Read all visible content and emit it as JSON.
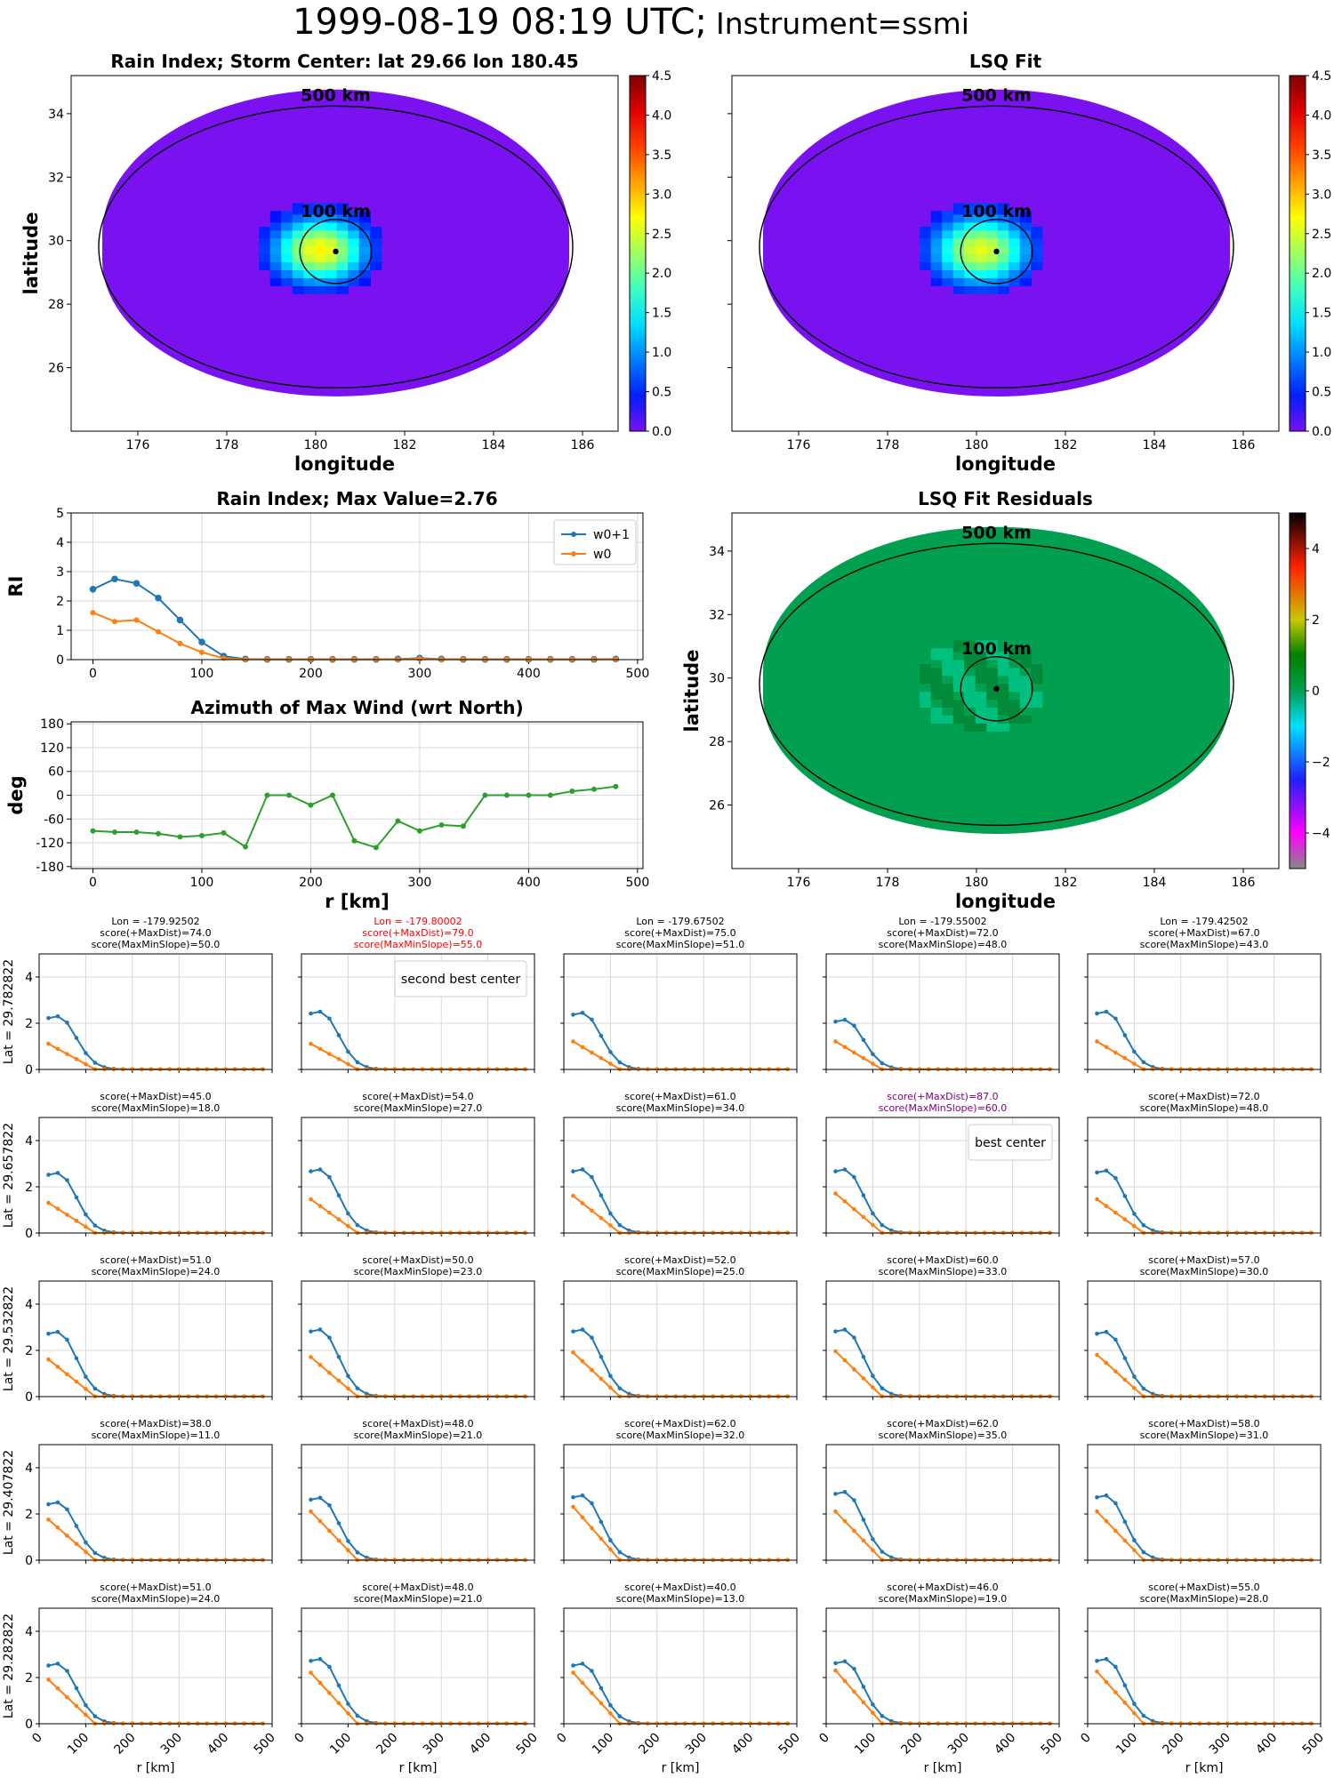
{
  "suptitle": {
    "main": "1999-08-19 08:19 UTC;",
    "instrument": "Instrument=ssmi"
  },
  "colors": {
    "w0p1": "#1f77b4",
    "w0": "#ff7f0e",
    "azimuth": "#2ca02c",
    "rain_background": "#7a11f0",
    "residual_background": "#00a050",
    "highlight_red": "#ff0000",
    "highlight_purple": "#800080"
  },
  "chart_data": [
    {
      "id": "rain-index-map",
      "type": "heatmap",
      "title": "Rain Index; Storm Center: lat 29.66 lon 180.45",
      "xlabel": "longitude",
      "ylabel": "latitude",
      "xlim": [
        174.5,
        186.8
      ],
      "ylim": [
        24.0,
        35.2
      ],
      "xticks": [
        "176",
        "178",
        "180",
        "182",
        "184",
        "186"
      ],
      "yticks": [
        "26",
        "28",
        "30",
        "32",
        "34"
      ],
      "storm_center": {
        "lon": 180.45,
        "lat": 29.66
      },
      "ring_labels": [
        "500 km",
        "100 km"
      ],
      "colorbar": {
        "colormap": "jet",
        "range": [
          0.0,
          4.5
        ],
        "ticks": [
          "0.0",
          "0.5",
          "1.0",
          "1.5",
          "2.0",
          "2.5",
          "3.0",
          "3.5",
          "4.0",
          "4.5"
        ]
      },
      "core_value": 2.76
    },
    {
      "id": "lsq-fit-map",
      "type": "heatmap",
      "title": "LSQ Fit",
      "xlabel": "longitude",
      "ylabel": "",
      "xlim": [
        174.5,
        186.8
      ],
      "ylim": [
        24.0,
        35.2
      ],
      "xticks": [
        "176",
        "178",
        "180",
        "182",
        "184",
        "186"
      ],
      "yticks": [],
      "storm_center": {
        "lon": 180.45,
        "lat": 29.66
      },
      "ring_labels": [
        "500 km",
        "100 km"
      ],
      "colorbar": {
        "colormap": "jet",
        "range": [
          0.0,
          4.5
        ],
        "ticks": [
          "0.0",
          "0.5",
          "1.0",
          "1.5",
          "2.0",
          "2.5",
          "3.0",
          "3.5",
          "4.0",
          "4.5"
        ]
      }
    },
    {
      "id": "rain-index-profile",
      "type": "line",
      "title": "Rain Index; Max Value=2.76",
      "xlabel": "",
      "ylabel": "RI",
      "xlim": [
        -20,
        505
      ],
      "ylim": [
        0,
        5
      ],
      "xticks": [
        "0",
        "100",
        "200",
        "300",
        "400",
        "500"
      ],
      "yticks": [
        "0",
        "1",
        "2",
        "3",
        "4",
        "5"
      ],
      "grid": true,
      "legend": "top-right",
      "x": [
        0,
        20,
        40,
        60,
        80,
        100,
        120,
        140,
        160,
        180,
        200,
        220,
        240,
        260,
        280,
        300,
        320,
        340,
        360,
        380,
        400,
        420,
        440,
        460,
        480
      ],
      "series": [
        {
          "name": "w0+1",
          "values": [
            2.4,
            2.75,
            2.6,
            2.1,
            1.35,
            0.6,
            0.12,
            0.02,
            0.01,
            0.01,
            0.01,
            0.01,
            0.01,
            0.01,
            0.02,
            0.05,
            0.02,
            0.01,
            0.01,
            0.01,
            0.01,
            0.01,
            0.01,
            0.01,
            0.02
          ]
        },
        {
          "name": "w0",
          "values": [
            1.6,
            1.3,
            1.35,
            0.95,
            0.55,
            0.25,
            0.05,
            0.01,
            0.01,
            0.01,
            0.01,
            0.01,
            0.01,
            0.01,
            0.01,
            0.03,
            0.01,
            0.01,
            0.01,
            0.01,
            0.01,
            0.01,
            0.01,
            0.01,
            0.01
          ]
        }
      ]
    },
    {
      "id": "azimuth-profile",
      "type": "line",
      "title": "Azimuth of Max Wind (wrt North)",
      "xlabel": "r [km]",
      "ylabel": "deg",
      "xlim": [
        -20,
        505
      ],
      "ylim": [
        -185,
        185
      ],
      "xticks": [
        "0",
        "100",
        "200",
        "300",
        "400",
        "500"
      ],
      "yticks": [
        "-180",
        "-120",
        "-60",
        "0",
        "60",
        "120",
        "180"
      ],
      "grid": true,
      "x": [
        0,
        20,
        40,
        60,
        80,
        100,
        120,
        140,
        160,
        180,
        200,
        220,
        240,
        260,
        280,
        300,
        320,
        340,
        360,
        380,
        400,
        420,
        440,
        460,
        480
      ],
      "series": [
        {
          "name": "",
          "values": [
            -90,
            -93,
            -93,
            -97,
            -105,
            -102,
            -95,
            -130,
            0,
            0,
            -25,
            0,
            -115,
            -132,
            -65,
            -90,
            -75,
            -78,
            0,
            0,
            0,
            0,
            10,
            15,
            22
          ]
        }
      ]
    },
    {
      "id": "lsq-residuals-map",
      "type": "heatmap",
      "title": "LSQ Fit Residuals",
      "xlabel": "longitude",
      "ylabel": "latitude",
      "xlim": [
        174.5,
        186.8
      ],
      "ylim": [
        24.0,
        35.2
      ],
      "xticks": [
        "176",
        "178",
        "180",
        "182",
        "184",
        "186"
      ],
      "yticks": [
        "26",
        "28",
        "30",
        "32",
        "34"
      ],
      "storm_center": {
        "lon": 180.45,
        "lat": 29.66
      },
      "ring_labels": [
        "500 km",
        "100 km"
      ],
      "colorbar": {
        "colormap": "diverging",
        "range": [
          -5,
          5
        ],
        "ticks": [
          "−4",
          "−2",
          "0",
          "2",
          "4"
        ]
      }
    }
  ],
  "grid_panels": {
    "xlabel": "r [km]",
    "xticks": [
      "0",
      "100",
      "200",
      "300",
      "400",
      "500"
    ],
    "yticks": [
      "0",
      "2",
      "4"
    ],
    "xlim": [
      0,
      500
    ],
    "ylim": [
      0,
      5
    ],
    "row_labels": [
      "Lat = 29.782822",
      "Lat = 29.657822",
      "Lat = 29.532822",
      "Lat = 29.407822",
      "Lat = 29.282822"
    ],
    "column_lons": [
      "Lon = -179.92502",
      "Lon = -179.80002",
      "Lon = -179.67502",
      "Lon = -179.55002",
      "Lon = -179.42502"
    ],
    "scores": [
      [
        [
          74.0,
          50.0
        ],
        [
          79.0,
          55.0
        ],
        [
          75.0,
          51.0
        ],
        [
          72.0,
          48.0
        ],
        [
          67.0,
          43.0
        ]
      ],
      [
        [
          45.0,
          18.0
        ],
        [
          54.0,
          27.0
        ],
        [
          61.0,
          34.0
        ],
        [
          87.0,
          60.0
        ],
        [
          72.0,
          48.0
        ]
      ],
      [
        [
          51.0,
          24.0
        ],
        [
          50.0,
          23.0
        ],
        [
          52.0,
          25.0
        ],
        [
          60.0,
          33.0
        ],
        [
          57.0,
          30.0
        ]
      ],
      [
        [
          38.0,
          11.0
        ],
        [
          48.0,
          21.0
        ],
        [
          62.0,
          32.0
        ],
        [
          62.0,
          35.0
        ],
        [
          58.0,
          31.0
        ]
      ],
      [
        [
          51.0,
          24.0
        ],
        [
          48.0,
          21.0
        ],
        [
          40.0,
          13.0
        ],
        [
          46.0,
          19.0
        ],
        [
          55.0,
          28.0
        ]
      ]
    ],
    "score_label_maxdist": "score(+MaxDist)=",
    "score_label_slope": "score(MaxMinSlope)=",
    "second_best": {
      "row": 0,
      "col": 1,
      "label": "second best center"
    },
    "best": {
      "row": 1,
      "col": 3,
      "label": "best center"
    },
    "profile_x": [
      20,
      40,
      60,
      80,
      100,
      120,
      140,
      160,
      180,
      200,
      220,
      240,
      260,
      280,
      300,
      320,
      340,
      360,
      380,
      400,
      420,
      440,
      460,
      480
    ],
    "w0p1_peak": [
      [
        2.3,
        2.5,
        2.45,
        2.15,
        2.5
      ],
      [
        2.6,
        2.75,
        2.75,
        2.75,
        2.7
      ],
      [
        2.8,
        2.9,
        2.9,
        2.9,
        2.8
      ],
      [
        2.5,
        2.7,
        2.8,
        2.95,
        2.8
      ],
      [
        2.6,
        2.8,
        2.6,
        2.7,
        2.8
      ]
    ],
    "w0_start": [
      [
        1.1,
        1.1,
        1.2,
        1.2,
        1.2
      ],
      [
        1.3,
        1.45,
        1.6,
        1.7,
        1.45
      ],
      [
        1.6,
        1.7,
        1.9,
        1.95,
        1.8
      ],
      [
        1.75,
        2.1,
        2.3,
        2.1,
        2.1
      ],
      [
        1.9,
        2.2,
        2.2,
        2.3,
        2.25
      ]
    ]
  }
}
